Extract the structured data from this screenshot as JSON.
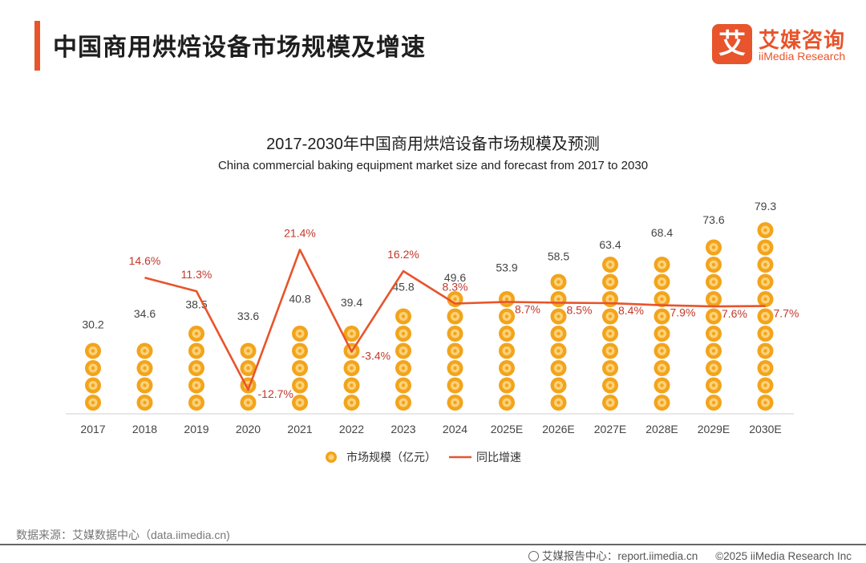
{
  "header": {
    "title": "中国商用烘焙设备市场规模及增速",
    "logo_mark": "艾",
    "logo_cn": "艾媒咨询",
    "logo_en": "iiMedia Research"
  },
  "chart_data": {
    "type": "bar",
    "title": "2017-2030年中国商用烘焙设备市场规模及预测",
    "subtitle": "China commercial baking equipment market size and forecast from 2017 to 2030",
    "categories": [
      "2017",
      "2018",
      "2019",
      "2020",
      "2021",
      "2022",
      "2023",
      "2024",
      "2025E",
      "2026E",
      "2027E",
      "2028E",
      "2029E",
      "2030E"
    ],
    "series": [
      {
        "name": "市场规模（亿元）",
        "type": "bar",
        "values": [
          30.2,
          34.6,
          38.5,
          33.6,
          40.8,
          39.4,
          45.8,
          49.6,
          53.9,
          58.5,
          63.4,
          68.4,
          73.6,
          79.3
        ]
      },
      {
        "name": "同比增速",
        "type": "line",
        "values": [
          null,
          14.6,
          11.3,
          -12.7,
          21.4,
          -3.4,
          16.2,
          8.3,
          8.7,
          8.5,
          8.4,
          7.9,
          7.6,
          7.7
        ],
        "labels": [
          "",
          "14.6%",
          "11.3%",
          "-12.7%",
          "21.4%",
          "-3.4%",
          "16.2%",
          "8.3%",
          "8.7%",
          "8.5%",
          "8.4%",
          "7.9%",
          "7.6%",
          "7.7%"
        ]
      }
    ],
    "grid": false,
    "legend": "bottom",
    "colors": {
      "bar": "#f2a41c",
      "bar_light": "#fcd27a",
      "line": "#e8542b",
      "line_label": "#c0392b",
      "value_label": "#444444"
    }
  },
  "footer": {
    "source": "数据来源：艾媒数据中心（data.iimedia.cn)",
    "report_site": "艾媒报告中心：report.iimedia.cn",
    "copyright": "©2025  iiMedia Research  Inc"
  }
}
